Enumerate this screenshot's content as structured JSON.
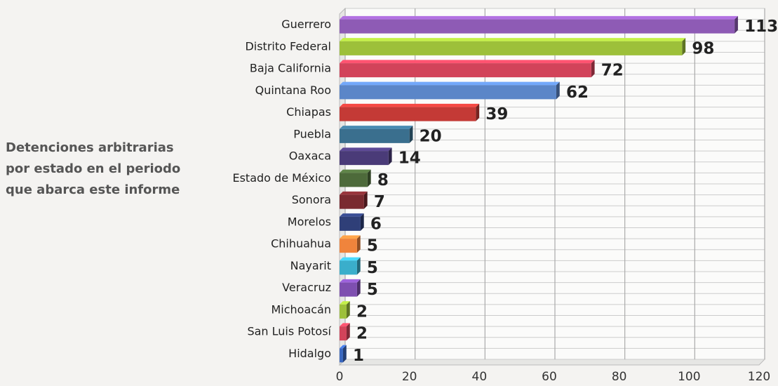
{
  "chart_data": {
    "type": "bar",
    "orientation": "horizontal",
    "title": [
      "Detenciones arbitrarias",
      "por estado en el periodo",
      "que abarca este informe"
    ],
    "categories": [
      "Guerrero",
      "Distrito Federal",
      "Baja California",
      "Quintana Roo",
      "Chiapas",
      "Puebla",
      "Oaxaca",
      "Estado de México",
      "Sonora",
      "Morelos",
      "Chihuahua",
      "Nayarit",
      "Veracruz",
      "Michoacán",
      "San Luis Potosí",
      "Hidalgo"
    ],
    "values": [
      113,
      98,
      72,
      62,
      39,
      20,
      14,
      8,
      7,
      6,
      5,
      5,
      5,
      2,
      2,
      1
    ],
    "colors": [
      "#8e5bb5",
      "#9dc03a",
      "#d2435a",
      "#5b86c8",
      "#c43a36",
      "#3a6f8e",
      "#4a3b78",
      "#4d6a3a",
      "#7a2a30",
      "#2f3f78",
      "#f0843c",
      "#3aaecb",
      "#7e4fb0",
      "#9dc03a",
      "#d2435a",
      "#3a68c0"
    ],
    "xlim": [
      0,
      120
    ],
    "xticks": [
      0,
      20,
      40,
      60,
      80,
      100,
      120
    ],
    "grid": true
  }
}
